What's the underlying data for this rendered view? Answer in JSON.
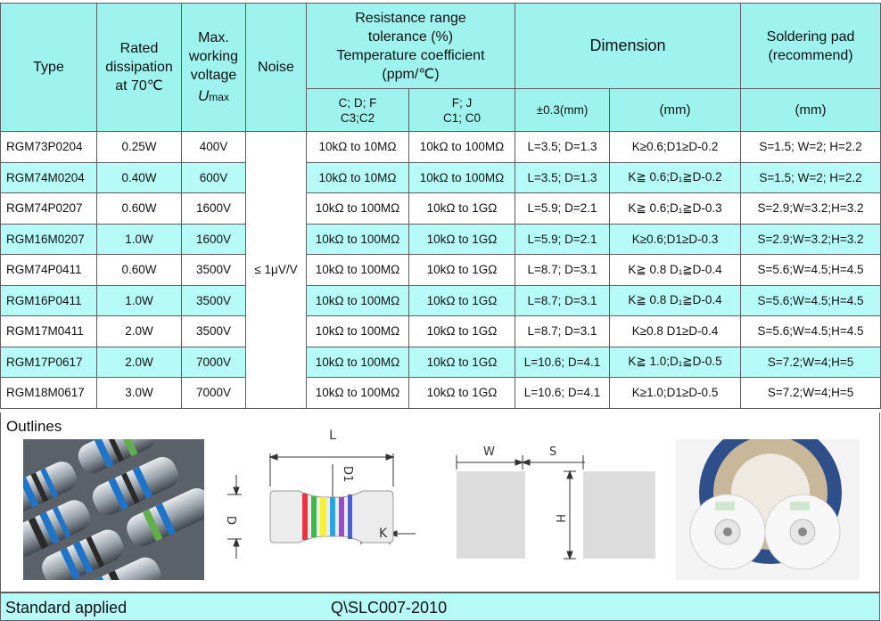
{
  "headers": {
    "type": "Type",
    "rated": [
      "Rated",
      "dissipation",
      "at 70℃"
    ],
    "maxv": [
      "Max.",
      "working",
      "voltage"
    ],
    "umax_symbol": "U",
    "umax_sub": "max",
    "noise": "Noise",
    "resistance": [
      "Resistance range",
      "tolerance (%)",
      "Temperature coefficient",
      "(ppm/℃)"
    ],
    "res_sub1": [
      "C; D; F",
      "C3;C2"
    ],
    "res_sub2": [
      "F; J",
      "C1; C0"
    ],
    "dimension": "Dimension",
    "dim_sub1": "±0.3(mm)",
    "dim_sub2": "(mm)",
    "solder": [
      "Soldering pad",
      "(recommend)"
    ],
    "solder_sub": "(mm)"
  },
  "noise_value": "≤ 1μV/V",
  "rows": [
    {
      "type": "RGM73P0204",
      "power": "0.25W",
      "voltage": "400V",
      "res1": "10kΩ to 10MΩ",
      "res2": "10kΩ to 100MΩ",
      "dim": "L=3.5; D=1.3",
      "k": "K≥0.6;D1≥D-0.2",
      "pad": "S=1.5; W=2; H=2.2",
      "color": "white"
    },
    {
      "type": "RGM74M0204",
      "power": "0.40W",
      "voltage": "600V",
      "res1": "10kΩ to 10MΩ",
      "res2": "10kΩ to 100MΩ",
      "dim": "L=3.5; D=1.3",
      "k": "K≧ 0.6;D₁≧D-0.2",
      "pad": "S=1.5; W=2; H=2.2",
      "color": "cyan"
    },
    {
      "type": "RGM74P0207",
      "power": "0.60W",
      "voltage": "1600V",
      "res1": "10kΩ to 100MΩ",
      "res2": "10kΩ to 1GΩ",
      "dim": "L=5.9; D=2.1",
      "k": "K≧ 0.6;D₁≧D-0.3",
      "pad": "S=2.9;W=3.2;H=3.2",
      "color": "white"
    },
    {
      "type": "RGM16M0207",
      "power": "1.0W",
      "voltage": "1600V",
      "res1": "10kΩ to 100MΩ",
      "res2": "10kΩ to 1GΩ",
      "dim": "L=5.9; D=2.1",
      "k": "K≥0.6;D1≥D-0.3",
      "pad": "S=2.9;W=3.2;H=3.2",
      "color": "cyan"
    },
    {
      "type": "RGM74P0411",
      "power": "0.60W",
      "voltage": "3500V",
      "res1": "10kΩ to 100MΩ",
      "res2": "10kΩ to 1GΩ",
      "dim": "L=8.7; D=3.1",
      "k": "K≧ 0.8 D₁≧D-0.4",
      "pad": "S=5.6;W=4.5;H=4.5",
      "color": "white"
    },
    {
      "type": "RGM16P0411",
      "power": "1.0W",
      "voltage": "3500V",
      "res1": "10kΩ to 100MΩ",
      "res2": "10kΩ to 1GΩ",
      "dim": "L=8.7; D=3.1",
      "k": "K≧ 0.8 D₁≧D-0.4",
      "pad": "S=5.6;W=4.5;H=4.5",
      "color": "cyan"
    },
    {
      "type": "RGM17M0411",
      "power": "2.0W",
      "voltage": "3500V",
      "res1": "10kΩ to 100MΩ",
      "res2": "10kΩ to 1GΩ",
      "dim": "L=8.7; D=3.1",
      "k": "K≥0.8 D1≥D-0.4",
      "pad": "S=5.6;W=4.5;H=4.5",
      "color": "white"
    },
    {
      "type": "RGM17P0617",
      "power": "2.0W",
      "voltage": "7000V",
      "res1": "10kΩ to 100MΩ",
      "res2": "10kΩ to 1GΩ",
      "dim": "L=10.6; D=4.1",
      "k": "K≧ 1.0;D₁≧D-0.5",
      "pad": "S=7.2;W=4;H=5",
      "color": "cyan"
    },
    {
      "type": "RGM18M0617",
      "power": "3.0W",
      "voltage": "7000V",
      "res1": "10kΩ to 100MΩ",
      "res2": "10kΩ to 1GΩ",
      "dim": "L=10.6; D=4.1",
      "k": "K≥1.0;D1≥D-0.5",
      "pad": "S=7.2;W=4;H=5",
      "color": "white"
    }
  ],
  "outlines": {
    "title": "Outlines",
    "diagram_labels": {
      "L": "L",
      "D1": "D1",
      "D": "D",
      "K": "K",
      "W": "W",
      "S": "S",
      "H": "H"
    }
  },
  "footer": {
    "label": "Standard applied",
    "value": "Q\\SLC007-2010"
  },
  "colors": {
    "header_bg": "#9ff3ef",
    "row_alt_bg": "#b7fbf9",
    "border": "#5f5f5f"
  }
}
